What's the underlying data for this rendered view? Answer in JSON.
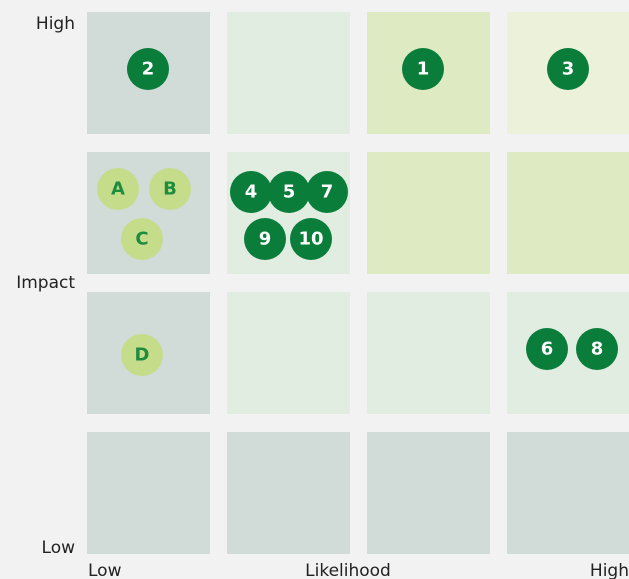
{
  "y_axis": {
    "high": "High",
    "label": "Impact",
    "low": "Low"
  },
  "x_axis": {
    "low": "Low",
    "label": "Likelihood",
    "high": "High"
  },
  "items": [
    "2",
    "1",
    "3",
    "A",
    "B",
    "C",
    "4",
    "5",
    "7",
    "9",
    "10",
    "D",
    "6",
    "8"
  ]
}
